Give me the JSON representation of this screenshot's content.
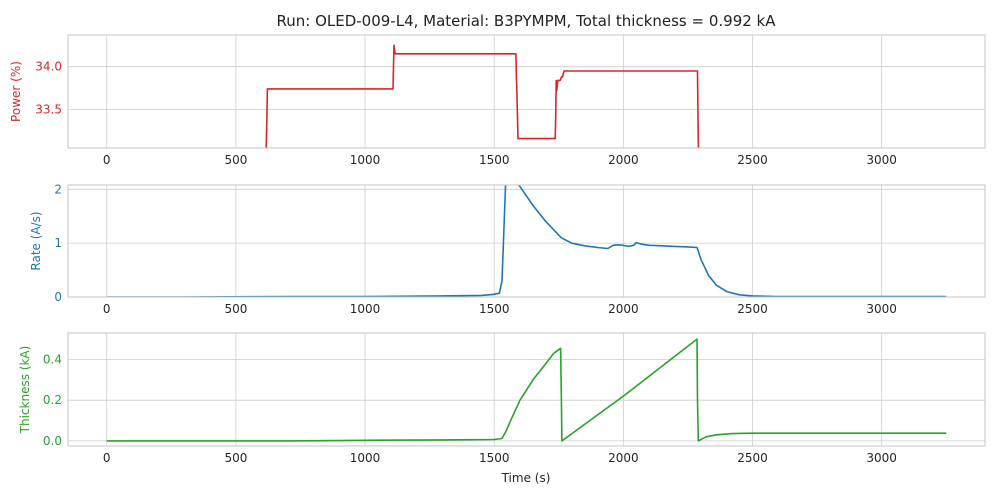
{
  "title": "Run: OLED-009-L4, Material: B3PYMPM, Total thickness = 0.992 kA",
  "xlabel": "Time (s)",
  "colors": {
    "power": "#d62728",
    "rate": "#1f77b4",
    "thickness": "#2ca02c"
  },
  "chart_data": [
    {
      "type": "line",
      "name": "power",
      "xlabel": "",
      "ylabel": "Power (%)",
      "xlim": [
        -150,
        3400
      ],
      "ylim": [
        33.05,
        34.37
      ],
      "xticks": [
        0,
        500,
        1000,
        1500,
        2000,
        2500,
        3000
      ],
      "yticks": [
        33.5,
        34.0
      ],
      "ytick_labels": [
        "33.5",
        "34.0"
      ],
      "grid": true,
      "x": [
        617,
        620,
        622,
        1108,
        1110,
        1112,
        1114,
        1116,
        1118,
        1120,
        1584,
        1586,
        1588,
        1590,
        1592,
        1736,
        1738,
        1740,
        1742,
        1746,
        1752,
        1756,
        1760,
        1764,
        1770,
        1775,
        2287,
        2289,
        2291
      ],
      "y": [
        33.0,
        33.4,
        33.74,
        33.74,
        34.0,
        34.25,
        34.2,
        34.15,
        34.15,
        34.15,
        34.15,
        33.88,
        33.7,
        33.4,
        33.16,
        33.16,
        33.4,
        33.84,
        33.72,
        33.84,
        33.84,
        33.84,
        33.88,
        33.88,
        33.95,
        33.95,
        33.95,
        33.4,
        33.0
      ]
    },
    {
      "type": "line",
      "name": "rate",
      "xlabel": "",
      "ylabel": "Rate (A/s)",
      "xlim": [
        -150,
        3400
      ],
      "ylim": [
        0,
        2.08
      ],
      "xticks": [
        0,
        500,
        1000,
        1500,
        2000,
        2500,
        3000
      ],
      "yticks": [
        0,
        1,
        2
      ],
      "ytick_labels": [
        "0",
        "1",
        "2"
      ],
      "grid": true,
      "x": [
        0,
        300,
        700,
        1000,
        1300,
        1450,
        1480,
        1500,
        1520,
        1530,
        1545,
        1560,
        1600,
        1650,
        1700,
        1730,
        1760,
        1800,
        1850,
        1900,
        1940,
        1960,
        1980,
        2000,
        2020,
        2040,
        2050,
        2070,
        2100,
        2150,
        2200,
        2250,
        2285,
        2290,
        2300,
        2330,
        2360,
        2400,
        2450,
        2500,
        2600,
        3000,
        3250
      ],
      "y": [
        0.0,
        0.0,
        0.01,
        0.01,
        0.02,
        0.03,
        0.04,
        0.05,
        0.07,
        0.3,
        2.2,
        2.3,
        2.05,
        1.7,
        1.4,
        1.25,
        1.1,
        1.0,
        0.95,
        0.92,
        0.9,
        0.96,
        0.97,
        0.96,
        0.94,
        0.96,
        1.01,
        0.98,
        0.96,
        0.95,
        0.94,
        0.93,
        0.92,
        0.85,
        0.7,
        0.4,
        0.22,
        0.1,
        0.04,
        0.02,
        0.01,
        0.01,
        0.01
      ]
    },
    {
      "type": "line",
      "name": "thickness",
      "xlabel": "Time (s)",
      "ylabel": "Thickness (kA)",
      "xlim": [
        -150,
        3400
      ],
      "ylim": [
        -0.025,
        0.53
      ],
      "xticks": [
        0,
        500,
        1000,
        1500,
        2000,
        2500,
        3000
      ],
      "yticks": [
        0.0,
        0.2,
        0.4
      ],
      "ytick_labels": [
        "0.0",
        "0.2",
        "0.4"
      ],
      "grid": true,
      "x": [
        0,
        700,
        1000,
        1300,
        1500,
        1530,
        1545,
        1560,
        1600,
        1650,
        1700,
        1730,
        1757,
        1760,
        1762,
        2000,
        2285,
        2287,
        2290,
        2320,
        2360,
        2420,
        2500,
        2700,
        3250
      ],
      "y": [
        0.0,
        0.0,
        0.003,
        0.005,
        0.007,
        0.012,
        0.045,
        0.09,
        0.2,
        0.3,
        0.38,
        0.43,
        0.455,
        0.2,
        0.0,
        0.22,
        0.5,
        0.2,
        0.0,
        0.02,
        0.03,
        0.036,
        0.038,
        0.038,
        0.038
      ]
    }
  ]
}
